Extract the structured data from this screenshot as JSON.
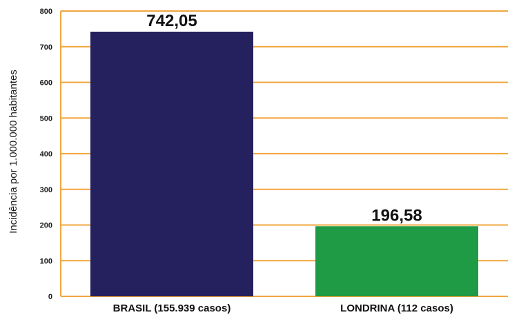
{
  "chart_data": {
    "type": "bar",
    "categories": [
      "BRASIL (155.939 casos)",
      "LONDRINA (112 casos)"
    ],
    "values": [
      742.05,
      196.58
    ],
    "value_labels": [
      "742,05",
      "196,58"
    ],
    "ylabel": "Incidência por 1.000.000 habitantes",
    "ylim": [
      0,
      800
    ],
    "yticks": [
      0,
      100,
      200,
      300,
      400,
      500,
      600,
      700,
      800
    ],
    "grid": true,
    "bar_colors": [
      "#25215e",
      "#1f9a45"
    ],
    "grid_color": "#f0a63c"
  }
}
